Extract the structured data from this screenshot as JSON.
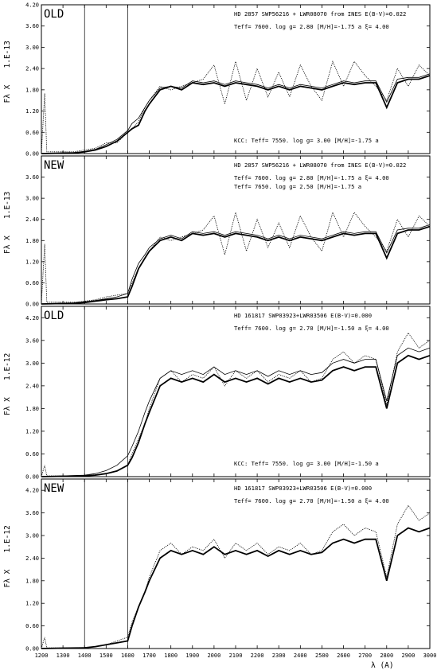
{
  "chart_data": [
    {
      "type": "line",
      "tag": "OLD",
      "scale_label": "1.E-13",
      "ylabel": "Fλ X",
      "header": "HD 2857  SWP56216 + LWR08070 from INES E(B-V)=0.022",
      "param_line": "Teff=   7600.  log g= 2.80 [M/H]=-1.75 a  ξ= 4.00",
      "second_param_line": "",
      "kcc_line": "KCC: Teff=  7550. log g= 3.00 [M/H]=-1.75 a",
      "xlim": [
        1200,
        3000
      ],
      "ylim": [
        0,
        4.2
      ],
      "yticks": [
        "0.00",
        "0.60",
        "1.20",
        "1.80",
        "2.40",
        "3.00",
        "3.60",
        "4.20"
      ],
      "vlines": [
        1400,
        1600
      ],
      "series": [
        {
          "role": "observed",
          "style": "dotted",
          "x": [
            1200,
            1215,
            1225,
            1240,
            1280,
            1350,
            1400,
            1450,
            1500,
            1550,
            1600,
            1620,
            1650,
            1680,
            1700,
            1750,
            1800,
            1850,
            1900,
            1950,
            2000,
            2050,
            2100,
            2150,
            2200,
            2250,
            2300,
            2350,
            2400,
            2450,
            2500,
            2550,
            2600,
            2650,
            2700,
            2750,
            2800,
            2850,
            2900,
            2950,
            3000
          ],
          "y": [
            0.0,
            1.7,
            0.05,
            0.05,
            0.05,
            0.05,
            0.1,
            0.15,
            0.3,
            0.3,
            0.6,
            0.7,
            0.9,
            1.3,
            1.5,
            1.9,
            1.8,
            1.9,
            2.0,
            2.1,
            2.5,
            1.4,
            2.6,
            1.5,
            2.4,
            1.6,
            2.3,
            1.6,
            2.5,
            1.9,
            1.5,
            2.6,
            1.9,
            2.6,
            2.2,
            1.9,
            1.5,
            2.4,
            1.9,
            2.5,
            2.2
          ]
        },
        {
          "role": "model",
          "style": "thick",
          "x": [
            1200,
            1350,
            1400,
            1450,
            1500,
            1550,
            1600,
            1620,
            1650,
            1680,
            1700,
            1750,
            1800,
            1850,
            1900,
            1950,
            2000,
            2050,
            2100,
            2150,
            2200,
            2250,
            2300,
            2350,
            2400,
            2450,
            2500,
            2550,
            2600,
            2650,
            2700,
            2750,
            2800,
            2850,
            2900,
            2950,
            3000
          ],
          "y": [
            0.0,
            0.02,
            0.05,
            0.1,
            0.2,
            0.35,
            0.6,
            0.7,
            0.8,
            1.2,
            1.4,
            1.8,
            1.9,
            1.8,
            2.0,
            1.95,
            2.0,
            1.9,
            2.0,
            1.95,
            1.9,
            1.8,
            1.9,
            1.8,
            1.9,
            1.85,
            1.8,
            1.9,
            2.0,
            1.95,
            2.0,
            2.0,
            1.3,
            2.0,
            2.1,
            2.1,
            2.2
          ]
        },
        {
          "role": "kcc",
          "style": "thin",
          "x": [
            1200,
            1350,
            1400,
            1450,
            1500,
            1550,
            1600,
            1620,
            1650,
            1680,
            1700,
            1750,
            1800,
            1850,
            1900,
            1950,
            2000,
            2050,
            2100,
            2150,
            2200,
            2250,
            2300,
            2350,
            2400,
            2450,
            2500,
            2550,
            2600,
            2650,
            2700,
            2750,
            2800,
            2850,
            2900,
            2950,
            3000
          ],
          "y": [
            0.0,
            0.02,
            0.06,
            0.12,
            0.25,
            0.4,
            0.65,
            0.85,
            1.0,
            1.3,
            1.5,
            1.85,
            1.9,
            1.85,
            2.05,
            2.0,
            2.05,
            1.95,
            2.05,
            2.0,
            1.95,
            1.85,
            1.95,
            1.85,
            1.95,
            1.9,
            1.85,
            1.95,
            2.05,
            2.0,
            2.05,
            2.05,
            1.45,
            2.1,
            2.15,
            2.15,
            2.25
          ]
        }
      ]
    },
    {
      "type": "line",
      "tag": "NEW",
      "scale_label": "1.E-13",
      "ylabel": "Fλ X",
      "header": "HD 2857  SWP56216 + LWR08070 from INES E(B-V)=0.022",
      "param_line": "Teff=   7600.  log g= 2.80 [M/H]=-1.75 a  ξ= 4.00",
      "second_param_line": "Teff=   7650.  log g= 2.50 [M/H]=-1.75 a",
      "kcc_line": "",
      "xlim": [
        1200,
        3000
      ],
      "ylim": [
        0,
        4.2
      ],
      "yticks": [
        "0.00",
        "0.60",
        "1.20",
        "1.80",
        "2.40",
        "3.00",
        "3.60"
      ],
      "vlines": [
        1400,
        1600
      ],
      "series": [
        {
          "role": "observed",
          "style": "dotted",
          "x": [
            1200,
            1215,
            1225,
            1240,
            1280,
            1350,
            1400,
            1450,
            1500,
            1550,
            1600,
            1620,
            1650,
            1680,
            1700,
            1750,
            1800,
            1850,
            1900,
            1950,
            2000,
            2050,
            2100,
            2150,
            2200,
            2250,
            2300,
            2350,
            2400,
            2450,
            2500,
            2550,
            2600,
            2650,
            2700,
            2750,
            2800,
            2850,
            2900,
            2950,
            3000
          ],
          "y": [
            0.0,
            1.7,
            0.05,
            0.05,
            0.05,
            0.05,
            0.08,
            0.12,
            0.2,
            0.25,
            0.3,
            0.6,
            1.0,
            1.3,
            1.5,
            1.9,
            1.8,
            1.9,
            2.0,
            2.1,
            2.5,
            1.4,
            2.6,
            1.5,
            2.4,
            1.6,
            2.3,
            1.6,
            2.5,
            1.9,
            1.5,
            2.6,
            1.9,
            2.6,
            2.2,
            1.9,
            1.5,
            2.4,
            1.9,
            2.5,
            2.2
          ]
        },
        {
          "role": "model",
          "style": "thick",
          "x": [
            1200,
            1350,
            1400,
            1450,
            1500,
            1550,
            1600,
            1620,
            1650,
            1680,
            1700,
            1750,
            1800,
            1850,
            1900,
            1950,
            2000,
            2050,
            2100,
            2150,
            2200,
            2250,
            2300,
            2350,
            2400,
            2450,
            2500,
            2550,
            2600,
            2650,
            2700,
            2750,
            2800,
            2850,
            2900,
            2950,
            3000
          ],
          "y": [
            0.0,
            0.02,
            0.04,
            0.08,
            0.12,
            0.15,
            0.2,
            0.5,
            1.0,
            1.3,
            1.5,
            1.8,
            1.9,
            1.8,
            2.0,
            1.95,
            2.0,
            1.9,
            2.0,
            1.95,
            1.9,
            1.8,
            1.9,
            1.8,
            1.9,
            1.85,
            1.8,
            1.9,
            2.0,
            1.95,
            2.0,
            2.0,
            1.3,
            2.0,
            2.1,
            2.1,
            2.2
          ]
        },
        {
          "role": "second_model",
          "style": "thin",
          "x": [
            1200,
            1350,
            1400,
            1450,
            1500,
            1550,
            1600,
            1620,
            1650,
            1680,
            1700,
            1750,
            1800,
            1850,
            1900,
            1950,
            2000,
            2050,
            2100,
            2150,
            2200,
            2250,
            2300,
            2350,
            2400,
            2450,
            2500,
            2550,
            2600,
            2650,
            2700,
            2750,
            2800,
            2850,
            2900,
            2950,
            3000
          ],
          "y": [
            0.0,
            0.03,
            0.06,
            0.1,
            0.15,
            0.2,
            0.3,
            0.7,
            1.15,
            1.4,
            1.6,
            1.85,
            1.95,
            1.85,
            2.05,
            2.0,
            2.05,
            1.95,
            2.05,
            2.0,
            1.95,
            1.85,
            1.95,
            1.85,
            1.95,
            1.9,
            1.85,
            1.95,
            2.05,
            2.0,
            2.05,
            2.05,
            1.45,
            2.1,
            2.15,
            2.15,
            2.25
          ]
        }
      ]
    },
    {
      "type": "line",
      "tag": "OLD",
      "scale_label": "1.E-12",
      "ylabel": "Fλ X",
      "header": "HD 161817  SWP03923+LWR03506  E(B-V)=0.000",
      "param_line": "Teff=   7600.  log g= 2.70 [M/H]=-1.50 a  ξ= 4.00",
      "second_param_line": "",
      "kcc_line": "KCC: Teff=  7550. log g= 3.00 [M/H]=-1.50 a",
      "xlim": [
        1200,
        3000
      ],
      "ylim": [
        0,
        4.5
      ],
      "yticks": [
        "0.00",
        "0.60",
        "1.20",
        "1.80",
        "2.40",
        "3.00",
        "3.60",
        "4.20"
      ],
      "vlines": [
        1400,
        1600
      ],
      "series": [
        {
          "role": "observed",
          "style": "dotted",
          "x": [
            1200,
            1215,
            1225,
            1240,
            1300,
            1350,
            1400,
            1450,
            1500,
            1550,
            1600,
            1620,
            1650,
            1680,
            1700,
            1750,
            1800,
            1850,
            1900,
            1950,
            2000,
            2050,
            2100,
            2150,
            2200,
            2250,
            2300,
            2350,
            2400,
            2450,
            2500,
            2550,
            2600,
            2650,
            2700,
            2750,
            2800,
            2850,
            2900,
            2950,
            3000
          ],
          "y": [
            0.0,
            0.3,
            0.02,
            0.02,
            0.02,
            0.02,
            0.03,
            0.05,
            0.08,
            0.15,
            0.3,
            0.6,
            1.0,
            1.4,
            1.8,
            2.6,
            2.8,
            2.5,
            2.7,
            2.6,
            2.9,
            2.4,
            2.8,
            2.6,
            2.8,
            2.5,
            2.7,
            2.6,
            2.8,
            2.5,
            2.6,
            3.1,
            3.3,
            3.0,
            3.2,
            3.1,
            1.9,
            3.3,
            3.8,
            3.4,
            3.6
          ]
        },
        {
          "role": "model",
          "style": "thick",
          "x": [
            1200,
            1300,
            1400,
            1450,
            1500,
            1550,
            1600,
            1620,
            1650,
            1680,
            1700,
            1750,
            1800,
            1850,
            1900,
            1950,
            2000,
            2050,
            2100,
            2150,
            2200,
            2250,
            2300,
            2350,
            2400,
            2450,
            2500,
            2550,
            2600,
            2650,
            2700,
            2750,
            2800,
            2850,
            2900,
            2950,
            3000
          ],
          "y": [
            0.0,
            0.01,
            0.02,
            0.04,
            0.08,
            0.15,
            0.3,
            0.5,
            0.9,
            1.4,
            1.7,
            2.4,
            2.6,
            2.5,
            2.6,
            2.5,
            2.7,
            2.5,
            2.6,
            2.5,
            2.6,
            2.45,
            2.6,
            2.5,
            2.6,
            2.5,
            2.55,
            2.8,
            2.9,
            2.8,
            2.9,
            2.9,
            1.8,
            3.0,
            3.2,
            3.1,
            3.2
          ]
        },
        {
          "role": "kcc",
          "style": "thin",
          "x": [
            1200,
            1300,
            1400,
            1450,
            1500,
            1550,
            1600,
            1620,
            1650,
            1680,
            1700,
            1750,
            1800,
            1850,
            1900,
            1950,
            2000,
            2050,
            2100,
            2150,
            2200,
            2250,
            2300,
            2350,
            2400,
            2450,
            2500,
            2550,
            2600,
            2650,
            2700,
            2750,
            2800,
            2850,
            2900,
            2950,
            3000
          ],
          "y": [
            0.0,
            0.02,
            0.04,
            0.08,
            0.16,
            0.3,
            0.55,
            0.8,
            1.2,
            1.7,
            2.0,
            2.6,
            2.8,
            2.7,
            2.8,
            2.7,
            2.9,
            2.7,
            2.8,
            2.7,
            2.8,
            2.65,
            2.8,
            2.7,
            2.8,
            2.7,
            2.75,
            3.0,
            3.1,
            3.0,
            3.1,
            3.1,
            2.0,
            3.2,
            3.4,
            3.3,
            3.4
          ]
        }
      ]
    },
    {
      "type": "line",
      "tag": "NEW",
      "scale_label": "1.E-12",
      "ylabel": "Fλ X",
      "header": "HD 161817  SWP03923+LWR03506  E(B-V)=0.000",
      "param_line": "Teff=   7600.  log g= 2.70 [M/H]=-1.50 a  ξ= 4.00",
      "second_param_line": "",
      "kcc_line": "",
      "xlim": [
        1200,
        3000
      ],
      "ylim": [
        0,
        4.5
      ],
      "yticks": [
        "0.00",
        "0.60",
        "1.20",
        "1.80",
        "2.40",
        "3.00",
        "3.60",
        "4.20"
      ],
      "vlines": [
        1400,
        1600
      ],
      "series": [
        {
          "role": "observed",
          "style": "dotted",
          "x": [
            1200,
            1215,
            1225,
            1240,
            1300,
            1350,
            1400,
            1450,
            1500,
            1550,
            1600,
            1620,
            1650,
            1680,
            1700,
            1750,
            1800,
            1850,
            1900,
            1950,
            2000,
            2050,
            2100,
            2150,
            2200,
            2250,
            2300,
            2350,
            2400,
            2450,
            2500,
            2550,
            2600,
            2650,
            2700,
            2750,
            2800,
            2850,
            2900,
            2950,
            3000
          ],
          "y": [
            0.0,
            0.3,
            0.02,
            0.02,
            0.02,
            0.02,
            0.03,
            0.05,
            0.1,
            0.2,
            0.3,
            0.7,
            1.1,
            1.5,
            1.9,
            2.6,
            2.8,
            2.5,
            2.7,
            2.6,
            2.9,
            2.4,
            2.8,
            2.6,
            2.8,
            2.5,
            2.7,
            2.6,
            2.8,
            2.5,
            2.6,
            3.1,
            3.3,
            3.0,
            3.2,
            3.1,
            1.9,
            3.3,
            3.8,
            3.4,
            3.6
          ]
        },
        {
          "role": "model",
          "style": "thick",
          "x": [
            1200,
            1300,
            1400,
            1450,
            1500,
            1550,
            1600,
            1620,
            1650,
            1680,
            1700,
            1750,
            1800,
            1850,
            1900,
            1950,
            2000,
            2050,
            2100,
            2150,
            2200,
            2250,
            2300,
            2350,
            2400,
            2450,
            2500,
            2550,
            2600,
            2650,
            2700,
            2750,
            2800,
            2850,
            2900,
            2950,
            3000
          ],
          "y": [
            0.0,
            0.01,
            0.02,
            0.05,
            0.1,
            0.15,
            0.2,
            0.6,
            1.1,
            1.5,
            1.8,
            2.4,
            2.6,
            2.5,
            2.6,
            2.5,
            2.7,
            2.5,
            2.6,
            2.5,
            2.6,
            2.45,
            2.6,
            2.5,
            2.6,
            2.5,
            2.55,
            2.8,
            2.9,
            2.8,
            2.9,
            2.9,
            1.8,
            3.0,
            3.2,
            3.1,
            3.2
          ]
        }
      ]
    }
  ],
  "xaxis": {
    "label": "λ (A)",
    "ticks": [
      "1200",
      "1300",
      "1400",
      "1500",
      "1600",
      "1700",
      "1800",
      "1900",
      "2000",
      "2100",
      "2200",
      "2300",
      "2400",
      "2500",
      "2600",
      "2700",
      "2800",
      "2900",
      "3000"
    ]
  },
  "colors": {
    "line": "#000000",
    "background": "#ffffff"
  }
}
